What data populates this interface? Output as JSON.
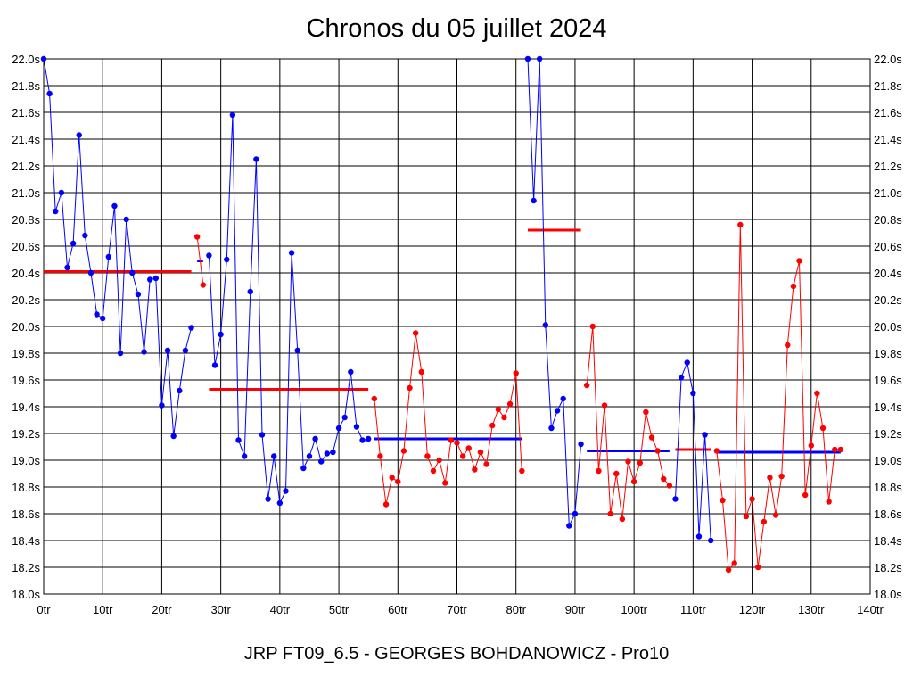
{
  "chart_data": {
    "type": "line",
    "title": "Chronos du 05 juillet 2024",
    "footer": "JRP FT09_6.5 - GEORGES BOHDANOWICZ - Pro10",
    "xlim": [
      0,
      140
    ],
    "ylim": [
      18.0,
      22.0
    ],
    "x_ticks": [
      0,
      10,
      20,
      30,
      40,
      50,
      60,
      70,
      80,
      90,
      100,
      110,
      120,
      130,
      140
    ],
    "x_tick_labels": [
      "0tr",
      "10tr",
      "20tr",
      "30tr",
      "40tr",
      "50tr",
      "60tr",
      "70tr",
      "80tr",
      "90tr",
      "100tr",
      "110tr",
      "120tr",
      "130tr",
      "140tr"
    ],
    "y_ticks": [
      18.0,
      18.2,
      18.4,
      18.6,
      18.8,
      19.0,
      19.2,
      19.4,
      19.6,
      19.8,
      20.0,
      20.2,
      20.4,
      20.6,
      20.8,
      21.0,
      21.2,
      21.4,
      21.6,
      21.8,
      22.0
    ],
    "y_tick_labels": [
      "18.0s",
      "18.2s",
      "18.4s",
      "18.6s",
      "18.8s",
      "19.0s",
      "19.2s",
      "19.4s",
      "19.6s",
      "19.8s",
      "20.0s",
      "20.2s",
      "20.4s",
      "20.6s",
      "20.8s",
      "21.0s",
      "21.2s",
      "21.4s",
      "21.6s",
      "21.8s",
      "22.0s"
    ],
    "grid": true,
    "colors": {
      "blue": "#0000ff",
      "red": "#ff0000"
    },
    "series": [
      {
        "color": "blue",
        "x": [
          0,
          1,
          2,
          3,
          4,
          5,
          6,
          7,
          8,
          9,
          10,
          11,
          12,
          13,
          14,
          15,
          16,
          17,
          18,
          19,
          20,
          21,
          22,
          23,
          24,
          25
        ],
        "y": [
          22.0,
          21.74,
          20.86,
          21.0,
          20.44,
          20.62,
          21.43,
          20.68,
          20.4,
          20.09,
          20.06,
          20.52,
          20.9,
          19.8,
          20.8,
          20.4,
          20.24,
          19.81,
          20.35,
          20.36,
          19.41,
          19.82,
          19.18,
          19.52,
          19.82,
          19.99
        ]
      },
      {
        "color": "red",
        "x": [
          26,
          27
        ],
        "y": [
          20.67,
          20.31
        ]
      },
      {
        "color": "blue",
        "x": [
          28,
          29,
          30,
          31,
          32,
          33,
          34,
          35,
          36,
          37,
          38,
          39,
          40,
          41,
          42,
          43,
          44,
          45,
          46,
          47,
          48,
          49,
          50,
          51,
          52,
          53,
          54,
          55
        ],
        "y": [
          20.53,
          19.71,
          19.94,
          20.5,
          21.58,
          19.15,
          19.03,
          20.26,
          21.25,
          19.19,
          18.71,
          19.03,
          18.68,
          18.77,
          20.55,
          19.82,
          18.94,
          19.03,
          19.16,
          18.99,
          19.05,
          19.06,
          19.24,
          19.32,
          19.66,
          19.25,
          19.15,
          19.16
        ]
      },
      {
        "color": "red",
        "x": [
          56,
          57,
          58,
          59,
          60,
          61,
          62,
          63,
          64,
          65,
          66,
          67,
          68,
          69,
          70,
          71,
          72,
          73,
          74,
          75,
          76,
          77,
          78,
          79,
          80,
          81
        ],
        "y": [
          19.46,
          19.03,
          18.67,
          18.87,
          18.84,
          19.07,
          19.54,
          19.95,
          19.66,
          19.03,
          18.92,
          19.0,
          18.83,
          19.15,
          19.13,
          19.03,
          19.09,
          18.93,
          19.06,
          18.97,
          19.26,
          19.38,
          19.32,
          19.42,
          19.65,
          18.92
        ]
      },
      {
        "color": "blue",
        "x": [
          82,
          83,
          84,
          85,
          86,
          87,
          88,
          89,
          90,
          91
        ],
        "y": [
          22.0,
          20.94,
          22.0,
          20.01,
          19.24,
          19.37,
          19.46,
          18.51,
          18.6,
          19.12
        ]
      },
      {
        "color": "red",
        "x": [
          92,
          93,
          94,
          95,
          96,
          97,
          98,
          99,
          100,
          101,
          102,
          103,
          104,
          105,
          106
        ],
        "y": [
          19.56,
          20.0,
          18.92,
          19.41,
          18.6,
          18.9,
          18.56,
          18.99,
          18.84,
          18.98,
          19.36,
          19.17,
          19.07,
          18.86,
          18.81
        ]
      },
      {
        "color": "blue",
        "x": [
          107,
          108,
          109,
          110,
          111,
          112,
          113
        ],
        "y": [
          18.71,
          19.62,
          19.73,
          19.5,
          18.43,
          19.19,
          18.4
        ]
      },
      {
        "color": "red",
        "x": [
          114,
          115,
          116,
          117,
          118,
          119,
          120,
          121,
          122,
          123,
          124,
          125,
          126,
          127,
          128,
          129,
          130,
          131,
          132,
          133,
          134,
          135
        ],
        "y": [
          19.07,
          18.7,
          18.18,
          18.23,
          20.76,
          18.58,
          18.71,
          18.2,
          18.54,
          18.87,
          18.59,
          18.88,
          19.86,
          20.3,
          20.49,
          18.74,
          19.11,
          19.5,
          19.24,
          18.69,
          19.08,
          19.08
        ]
      }
    ],
    "averages": [
      {
        "color": "red",
        "x": [
          0,
          25
        ],
        "y": 20.41
      },
      {
        "color": "blue",
        "x": [
          26,
          27
        ],
        "y": 20.49
      },
      {
        "color": "red",
        "x": [
          28,
          55
        ],
        "y": 19.53
      },
      {
        "color": "blue",
        "x": [
          56,
          81
        ],
        "y": 19.16
      },
      {
        "color": "red",
        "x": [
          82,
          91
        ],
        "y": 20.72
      },
      {
        "color": "blue",
        "x": [
          92,
          106
        ],
        "y": 19.07
      },
      {
        "color": "red",
        "x": [
          107,
          113
        ],
        "y": 19.08
      },
      {
        "color": "blue",
        "x": [
          114,
          135
        ],
        "y": 19.06
      }
    ]
  }
}
